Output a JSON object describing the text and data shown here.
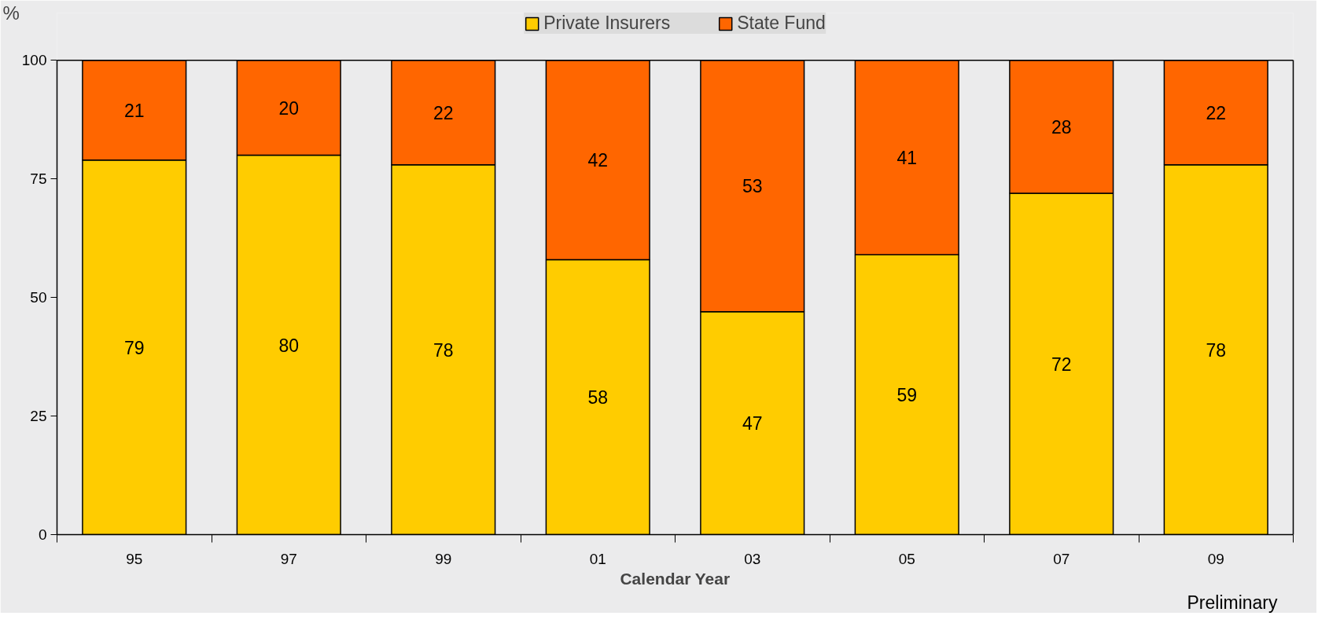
{
  "chart_data": {
    "type": "bar",
    "stacked": true,
    "categories": [
      "95",
      "97",
      "99",
      "01",
      "03",
      "05",
      "07",
      "09"
    ],
    "series": [
      {
        "name": "Private Insurers",
        "color": "#ffcc00",
        "values": [
          79,
          80,
          78,
          58,
          47,
          59,
          72,
          78
        ]
      },
      {
        "name": "State Fund",
        "color": "#ff6600",
        "values": [
          21,
          20,
          22,
          42,
          53,
          41,
          28,
          22
        ]
      }
    ],
    "ylabel": "%",
    "xlabel": "Calendar Year",
    "ylim": [
      0,
      100
    ],
    "yticks": [
      0,
      25,
      50,
      75,
      100
    ],
    "data_labels": true,
    "legend": "top",
    "grid": false,
    "annotations": [
      "Preliminary"
    ]
  }
}
